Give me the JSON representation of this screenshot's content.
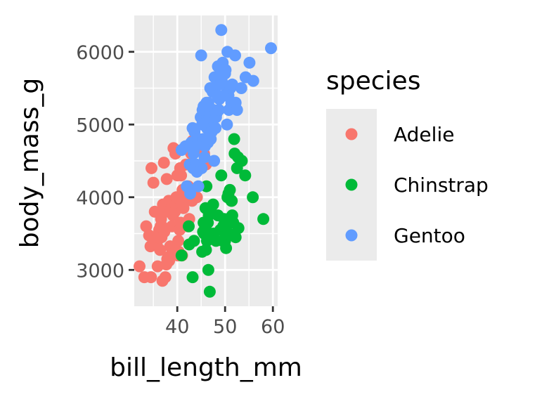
{
  "chart_data": {
    "type": "scatter",
    "xlabel": "bill_length_mm",
    "ylabel": "body_mass_g",
    "xlim": [
      31,
      61
    ],
    "ylim": [
      2500,
      6500
    ],
    "x_ticks": [
      40,
      50,
      60
    ],
    "y_ticks": [
      3000,
      4000,
      5000,
      6000
    ],
    "grid": true,
    "panel_background": "#ebebeb",
    "legend": {
      "title": "species",
      "placement": "right"
    },
    "series": [
      {
        "name": "Adelie",
        "color": "#F8766D",
        "points": [
          [
            32.1,
            3050
          ],
          [
            33.1,
            2900
          ],
          [
            33.5,
            3600
          ],
          [
            34.1,
            3475
          ],
          [
            34.5,
            2900
          ],
          [
            34.4,
            3325
          ],
          [
            34.6,
            4400
          ],
          [
            35.0,
            4200
          ],
          [
            35.1,
            3450
          ],
          [
            35.3,
            3800
          ],
          [
            35.5,
            3350
          ],
          [
            35.7,
            3350
          ],
          [
            35.9,
            3050
          ],
          [
            36.0,
            3450
          ],
          [
            36.2,
            3550
          ],
          [
            36.4,
            3275
          ],
          [
            36.5,
            3600
          ],
          [
            36.6,
            3700
          ],
          [
            36.7,
            3450
          ],
          [
            36.8,
            3600
          ],
          [
            36.9,
            2850
          ],
          [
            37.0,
            3900
          ],
          [
            37.2,
            4475
          ],
          [
            37.3,
            3525
          ],
          [
            37.5,
            2900
          ],
          [
            37.6,
            3800
          ],
          [
            37.7,
            3075
          ],
          [
            37.8,
            4250
          ],
          [
            37.9,
            3150
          ],
          [
            38.1,
            3175
          ],
          [
            38.2,
            3950
          ],
          [
            38.3,
            3125
          ],
          [
            38.5,
            3325
          ],
          [
            38.6,
            3800
          ],
          [
            38.8,
            3300
          ],
          [
            38.9,
            3600
          ],
          [
            39.0,
            3900
          ],
          [
            39.1,
            3750
          ],
          [
            39.2,
            4675
          ],
          [
            39.3,
            3225
          ],
          [
            39.5,
            3800
          ],
          [
            39.6,
            4600
          ],
          [
            39.7,
            3900
          ],
          [
            39.8,
            4000
          ],
          [
            40.0,
            4300
          ],
          [
            40.1,
            3200
          ],
          [
            40.2,
            3400
          ],
          [
            40.3,
            3250
          ],
          [
            40.5,
            3550
          ],
          [
            40.6,
            4400
          ],
          [
            40.7,
            3650
          ],
          [
            40.8,
            4300
          ],
          [
            40.9,
            3900
          ],
          [
            41.0,
            3200
          ],
          [
            41.1,
            4100
          ],
          [
            41.3,
            3850
          ],
          [
            41.4,
            4100
          ],
          [
            41.5,
            4000
          ],
          [
            41.6,
            3950
          ],
          [
            41.8,
            4450
          ],
          [
            42.0,
            4150
          ],
          [
            42.1,
            4050
          ],
          [
            42.2,
            3600
          ],
          [
            42.3,
            4150
          ],
          [
            42.5,
            3700
          ],
          [
            42.7,
            4100
          ],
          [
            42.9,
            4600
          ],
          [
            43.1,
            3950
          ],
          [
            43.2,
            4775
          ],
          [
            44.1,
            4000
          ],
          [
            45.6,
            4600
          ],
          [
            46.0,
            4450
          ]
        ]
      },
      {
        "name": "Chinstrap",
        "color": "#00BA38",
        "points": [
          [
            40.9,
            3200
          ],
          [
            42.4,
            3600
          ],
          [
            42.5,
            3350
          ],
          [
            43.2,
            2900
          ],
          [
            43.5,
            3400
          ],
          [
            45.2,
            3250
          ],
          [
            45.4,
            3525
          ],
          [
            45.5,
            3650
          ],
          [
            45.6,
            3500
          ],
          [
            45.7,
            3550
          ],
          [
            45.9,
            3850
          ],
          [
            46.0,
            3275
          ],
          [
            46.1,
            4150
          ],
          [
            46.2,
            3400
          ],
          [
            46.4,
            3650
          ],
          [
            46.5,
            3000
          ],
          [
            46.6,
            3750
          ],
          [
            46.7,
            3450
          ],
          [
            46.8,
            2700
          ],
          [
            46.9,
            3500
          ],
          [
            47.0,
            3850
          ],
          [
            47.5,
            3900
          ],
          [
            47.6,
            3500
          ],
          [
            48.1,
            3400
          ],
          [
            48.5,
            3750
          ],
          [
            49.0,
            3550
          ],
          [
            49.2,
            4300
          ],
          [
            49.5,
            3400
          ],
          [
            49.6,
            3600
          ],
          [
            49.7,
            3600
          ],
          [
            49.8,
            3700
          ],
          [
            50.0,
            3400
          ],
          [
            50.1,
            3600
          ],
          [
            50.2,
            3300
          ],
          [
            50.3,
            3450
          ],
          [
            50.5,
            4000
          ],
          [
            50.6,
            3700
          ],
          [
            50.7,
            4050
          ],
          [
            50.8,
            3500
          ],
          [
            50.9,
            3675
          ],
          [
            51.0,
            4100
          ],
          [
            51.3,
            3950
          ],
          [
            51.4,
            3950
          ],
          [
            51.5,
            3750
          ],
          [
            51.7,
            3650
          ],
          [
            51.9,
            4800
          ],
          [
            52.0,
            4600
          ],
          [
            52.2,
            3450
          ],
          [
            52.5,
            4400
          ],
          [
            52.7,
            4550
          ],
          [
            52.8,
            3575
          ],
          [
            53.5,
            4500
          ],
          [
            54.2,
            4300
          ],
          [
            55.8,
            4000
          ],
          [
            58.0,
            3700
          ]
        ]
      },
      {
        "name": "Gentoo",
        "color": "#619CFF",
        "points": [
          [
            40.9,
            4650
          ],
          [
            41.7,
            4700
          ],
          [
            42.0,
            4150
          ],
          [
            42.6,
            4450
          ],
          [
            42.7,
            4050
          ],
          [
            42.8,
            4700
          ],
          [
            42.9,
            4750
          ],
          [
            43.2,
            4950
          ],
          [
            43.3,
            4400
          ],
          [
            43.4,
            4600
          ],
          [
            43.5,
            4650
          ],
          [
            43.6,
            4900
          ],
          [
            43.8,
            4700
          ],
          [
            44.0,
            4450
          ],
          [
            44.4,
            4150
          ],
          [
            44.5,
            4800
          ],
          [
            44.9,
            5100
          ],
          [
            45.0,
            4750
          ],
          [
            45.1,
            4400
          ],
          [
            45.2,
            5000
          ],
          [
            45.3,
            5200
          ],
          [
            45.4,
            4800
          ],
          [
            45.5,
            5250
          ],
          [
            45.7,
            4550
          ],
          [
            45.8,
            4700
          ],
          [
            46.1,
            5300
          ],
          [
            46.2,
            4950
          ],
          [
            46.4,
            4750
          ],
          [
            46.5,
            5300
          ],
          [
            46.6,
            4850
          ],
          [
            46.8,
            5100
          ],
          [
            46.9,
            5500
          ],
          [
            47.2,
            4900
          ],
          [
            47.3,
            4950
          ],
          [
            47.4,
            5450
          ],
          [
            47.5,
            5200
          ],
          [
            47.7,
            4500
          ],
          [
            47.8,
            5650
          ],
          [
            48.1,
            5100
          ],
          [
            48.2,
            5150
          ],
          [
            48.4,
            5400
          ],
          [
            48.5,
            5800
          ],
          [
            48.6,
            5600
          ],
          [
            48.7,
            5200
          ],
          [
            48.8,
            5350
          ],
          [
            49.0,
            5550
          ],
          [
            49.1,
            5700
          ],
          [
            49.2,
            6300
          ],
          [
            49.3,
            5600
          ],
          [
            49.4,
            5800
          ],
          [
            49.5,
            5850
          ],
          [
            49.6,
            5550
          ],
          [
            49.8,
            5750
          ],
          [
            49.9,
            5400
          ],
          [
            50.0,
            5700
          ],
          [
            50.1,
            5750
          ],
          [
            50.2,
            5400
          ],
          [
            50.4,
            5000
          ],
          [
            50.5,
            6000
          ],
          [
            50.7,
            5400
          ],
          [
            50.8,
            5200
          ],
          [
            51.1,
            5500
          ],
          [
            51.3,
            5300
          ],
          [
            51.5,
            5550
          ],
          [
            52.1,
            5950
          ],
          [
            52.2,
            5300
          ],
          [
            52.5,
            5200
          ],
          [
            53.4,
            5500
          ],
          [
            54.3,
            5650
          ],
          [
            55.1,
            5850
          ],
          [
            55.9,
            5600
          ],
          [
            59.6,
            6050
          ],
          [
            44.1,
            4350
          ],
          [
            45.0,
            5950
          ],
          [
            46.2,
            5250
          ],
          [
            47.0,
            4800
          ],
          [
            48.0,
            4950
          ]
        ]
      }
    ]
  }
}
